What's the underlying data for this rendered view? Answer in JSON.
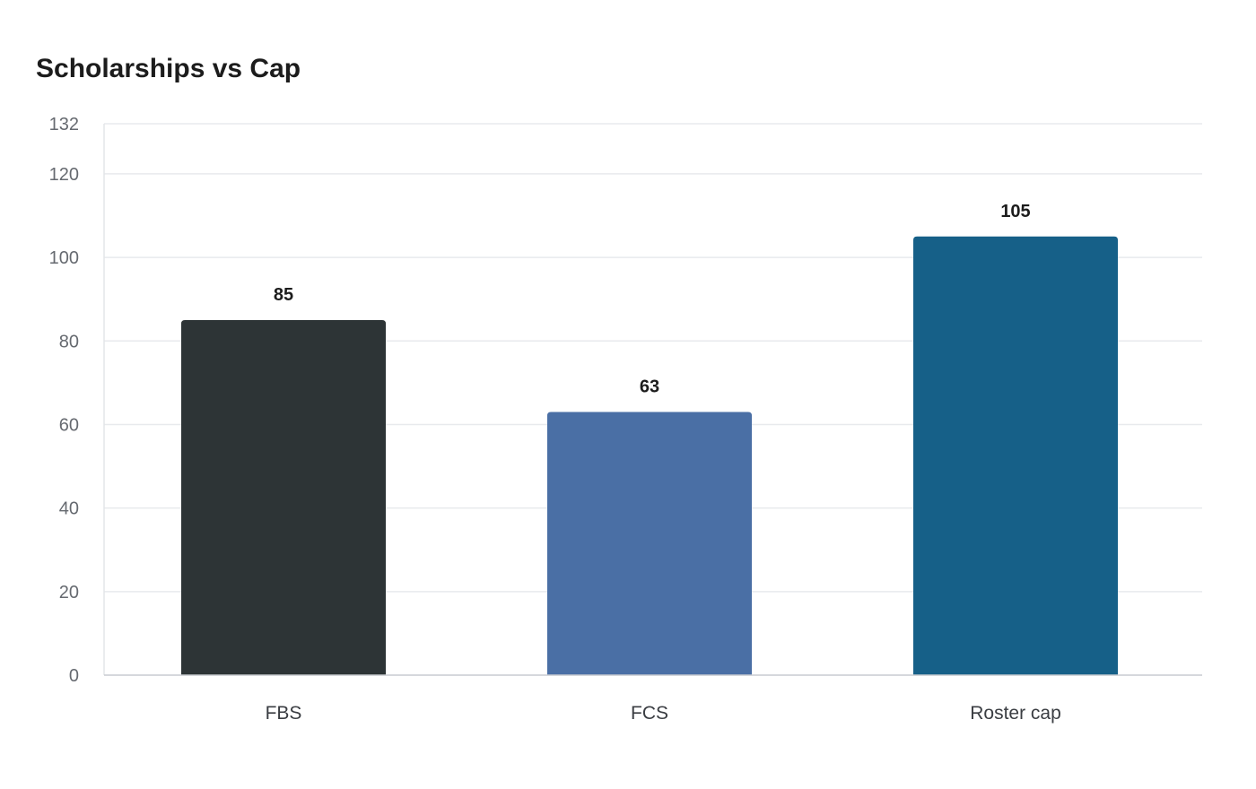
{
  "chart_data": {
    "type": "bar",
    "title": "Scholarships vs Cap",
    "categories": [
      "FBS",
      "FCS",
      "Roster cap"
    ],
    "values": [
      85,
      63,
      105
    ],
    "colors": [
      "#2d3436",
      "#4a6fa5",
      "#166088"
    ],
    "yticks": [
      0,
      20,
      40,
      60,
      80,
      100,
      120,
      132
    ],
    "ylim": [
      0,
      132
    ],
    "xlabel": "",
    "ylabel": "",
    "grid": true,
    "legend": "none"
  }
}
